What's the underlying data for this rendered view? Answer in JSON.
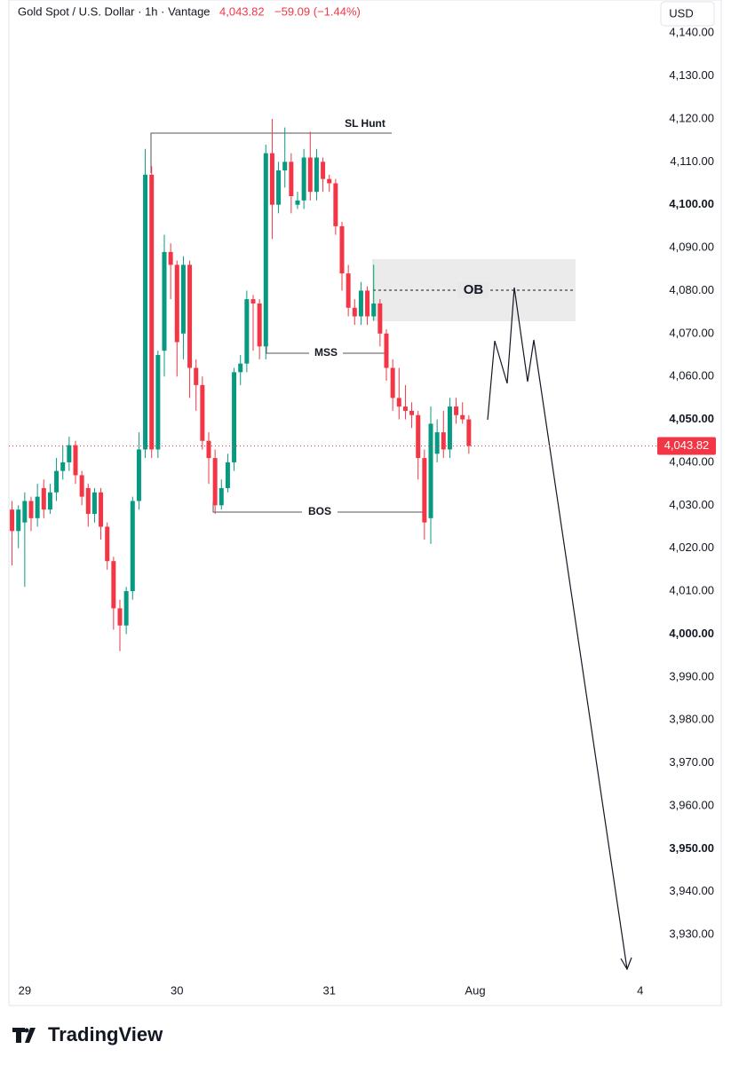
{
  "header": {
    "symbol": "Gold Spot / U.S. Dollar · 1h · Vantage",
    "price": "4,043.82",
    "change": "−59.09 (−1.44%)",
    "currency": "USD"
  },
  "footer": {
    "brand": "TradingView"
  },
  "chart_data": {
    "type": "candlestick",
    "up_color": "#089981",
    "down_color": "#f23645",
    "open": [
      4029,
      4024,
      4026,
      4031,
      4027,
      4034,
      4029,
      4033,
      4038,
      4040,
      4044,
      4037,
      4034,
      4028,
      4033,
      4025,
      4017,
      4006,
      4002,
      4010,
      4031,
      4043,
      4107,
      4043,
      4066,
      4089,
      4086,
      4070,
      4086,
      4062,
      4058,
      4045,
      4041,
      4030,
      4034,
      4040,
      4061,
      4063,
      4078,
      4077,
      4067,
      4112,
      4100,
      4108,
      4110,
      4100,
      4101,
      4111,
      4103,
      4110,
      4106,
      4105,
      4095,
      4084,
      4076,
      4074,
      4080,
      4074,
      4077,
      4070,
      4062,
      4055,
      4053,
      4052,
      4051,
      4041,
      4027,
      4042,
      4047,
      4043,
      4053,
      4051,
      4050
    ],
    "high": [
      4031,
      4030,
      4033,
      4032,
      4035,
      4036,
      4035,
      4041,
      4044,
      4046,
      4045,
      4038,
      4035,
      4034,
      4034,
      4026,
      4018,
      4008,
      4011,
      4032,
      4047,
      4113,
      4109,
      4066,
      4093,
      4091,
      4087,
      4088,
      4087,
      4064,
      4060,
      4047,
      4043,
      4036,
      4042,
      4062,
      4065,
      4080,
      4079,
      4078,
      4114,
      4120,
      4110,
      4118,
      4112,
      4103,
      4113,
      4117,
      4113,
      4111,
      4107,
      4106,
      4096,
      4086,
      4078,
      4082,
      4081,
      4086,
      4078,
      4071,
      4064,
      4062,
      4058,
      4054,
      4052,
      4043,
      4053,
      4050,
      4052,
      4055,
      4055,
      4054,
      4051
    ],
    "low": [
      4016,
      4020,
      4011,
      4024,
      4025,
      4027,
      4028,
      4031,
      4036,
      4038,
      4035,
      4030,
      4025,
      4026,
      4022,
      4015,
      4001,
      3996,
      4000,
      4008,
      4029,
      4041,
      4041,
      4041,
      4060,
      4078,
      4060,
      4064,
      4055,
      4052,
      4043,
      4035,
      4028,
      4029,
      4033,
      4038,
      4058,
      4061,
      4066,
      4064,
      4064,
      4092,
      4098,
      4104,
      4098,
      4099,
      4099,
      4101,
      4101,
      4103,
      4103,
      4093,
      4080,
      4074,
      4072,
      4072,
      4072,
      4073,
      4067,
      4059,
      4052,
      4050,
      4050,
      4048,
      4036,
      4022,
      4021,
      4040,
      4041,
      4041,
      4049,
      4049,
      4042
    ],
    "close": [
      4024,
      4029,
      4031,
      4027,
      4032,
      4029,
      4033,
      4038,
      4040,
      4044,
      4037,
      4032,
      4028,
      4033,
      4025,
      4017,
      4006,
      4002,
      4010,
      4031,
      4043,
      4107,
      4043,
      4065,
      4089,
      4086,
      4068,
      4086,
      4062,
      4058,
      4045,
      4041,
      4030,
      4034,
      4040,
      4061,
      4063,
      4078,
      4077,
      4067,
      4112,
      4100,
      4108,
      4110,
      4102,
      4101,
      4111,
      4103,
      4111,
      4106,
      4105,
      4095,
      4084,
      4076,
      4074,
      4080,
      4074,
      4077,
      4070,
      4062,
      4055,
      4053,
      4052,
      4051,
      4041,
      4026,
      4049,
      4047,
      4043,
      4053,
      4051,
      4050,
      4043.82
    ],
    "last_label": "4,043.82",
    "xlim": [
      -0.5,
      101
    ],
    "xticks": [
      {
        "value": 2,
        "label": "29"
      },
      {
        "value": 26,
        "label": "30"
      },
      {
        "value": 50,
        "label": "31"
      },
      {
        "value": 73,
        "label": "Aug"
      },
      {
        "value": 99,
        "label": "4"
      }
    ],
    "ylim": [
      3920.3,
      4141.9
    ],
    "yticks": [
      {
        "value": 3930,
        "label": "3,930.00"
      },
      {
        "value": 3940,
        "label": "3,940.00"
      },
      {
        "value": 3950,
        "label": "3,950.00",
        "bold": true
      },
      {
        "value": 3960,
        "label": "3,960.00"
      },
      {
        "value": 3970,
        "label": "3,970.00"
      },
      {
        "value": 3980,
        "label": "3,980.00"
      },
      {
        "value": 3990,
        "label": "3,990.00"
      },
      {
        "value": 4000,
        "label": "4,000.00",
        "bold": true
      },
      {
        "value": 4010,
        "label": "4,010.00"
      },
      {
        "value": 4020,
        "label": "4,020.00"
      },
      {
        "value": 4030,
        "label": "4,030.00"
      },
      {
        "value": 4040,
        "label": "4,040.00"
      },
      {
        "value": 4050,
        "label": "4,050.00",
        "bold": true
      },
      {
        "value": 4060,
        "label": "4,060.00"
      },
      {
        "value": 4070,
        "label": "4,070.00"
      },
      {
        "value": 4080,
        "label": "4,080.00"
      },
      {
        "value": 4090,
        "label": "4,090.00"
      },
      {
        "value": 4100,
        "label": "4,100.00",
        "bold": true
      },
      {
        "value": 4110,
        "label": "4,110.00"
      },
      {
        "value": 4120,
        "label": "4,120.00"
      },
      {
        "value": 4130,
        "label": "4,130.00"
      },
      {
        "value": 4140,
        "label": "4,140.00"
      }
    ],
    "grid": false,
    "annotations": {
      "sl_hunt": "SL Hunt",
      "mss": "MSS",
      "bos": "BOS",
      "ob": "OB"
    }
  }
}
